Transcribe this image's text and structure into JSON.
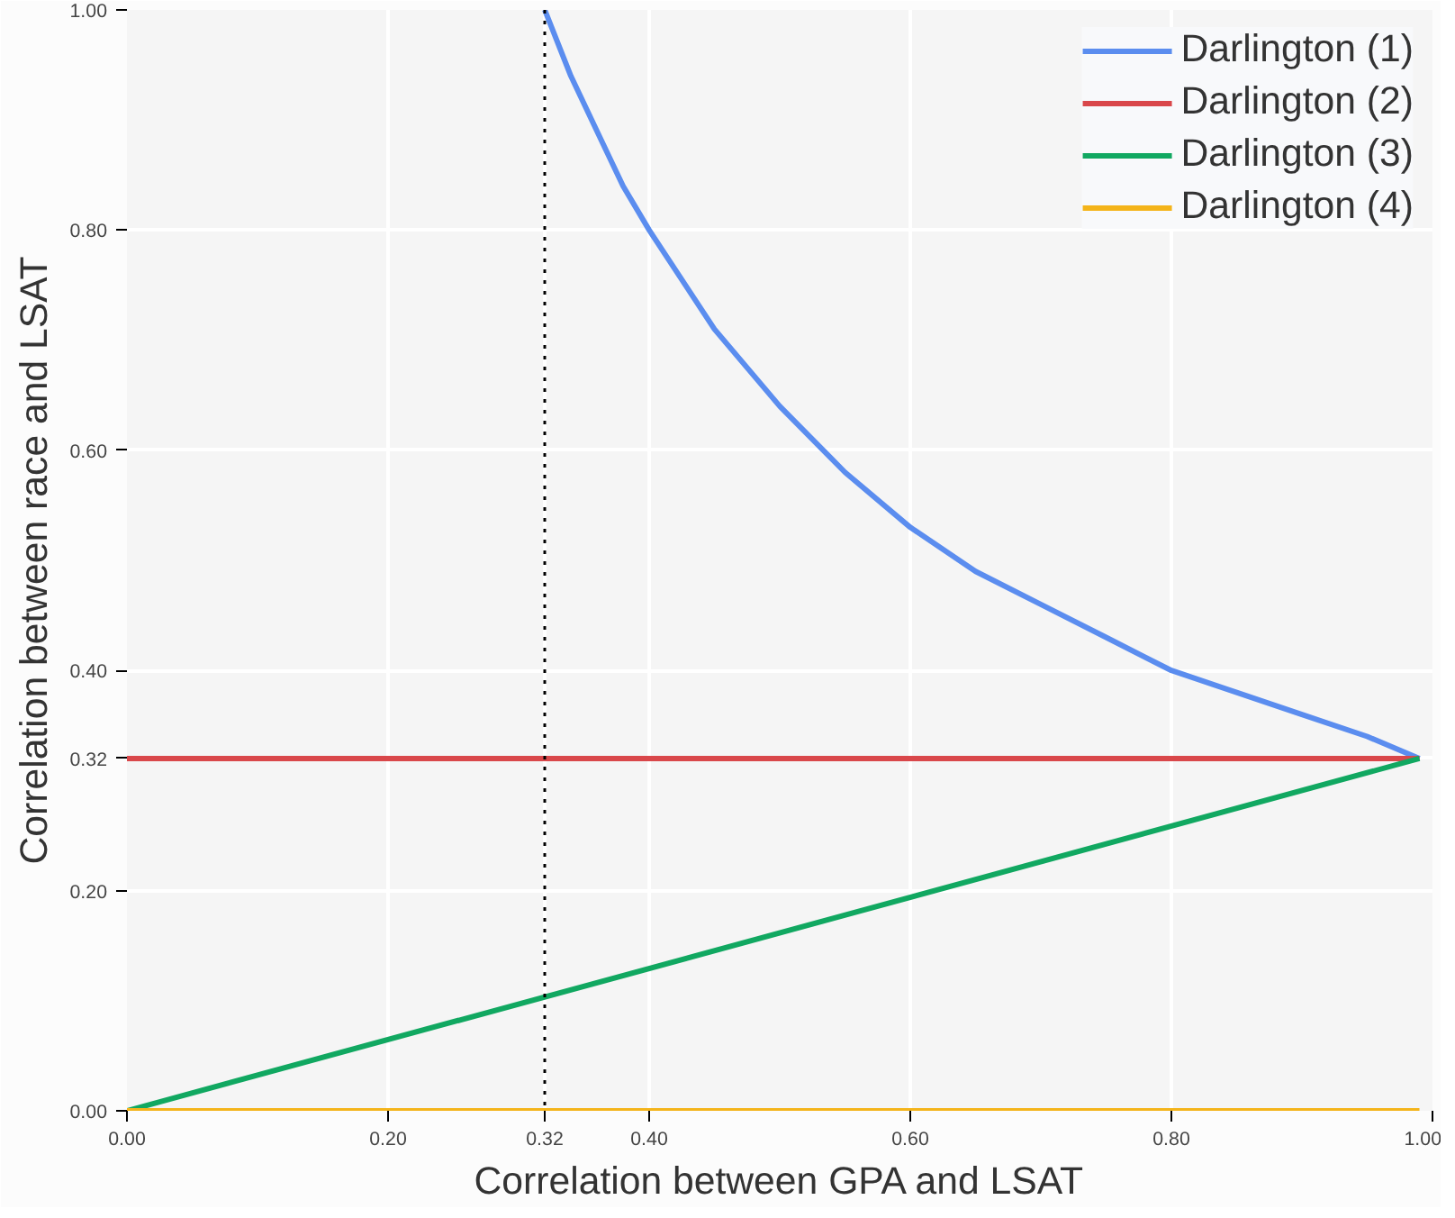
{
  "chart_data": {
    "type": "line",
    "xlabel": "Correlation between GPA and LSAT",
    "ylabel": "Correlation between race and LSAT",
    "series": [
      {
        "name": "Darlington (1)",
        "color": "#5b8def",
        "x": [
          0.32,
          0.34,
          0.36,
          0.38,
          0.4,
          0.45,
          0.5,
          0.55,
          0.6,
          0.65,
          0.7,
          0.75,
          0.8,
          0.85,
          0.9,
          0.95,
          0.99
        ],
        "values": [
          1.0,
          0.94,
          0.89,
          0.84,
          0.8,
          0.71,
          0.64,
          0.58,
          0.53,
          0.49,
          0.46,
          0.43,
          0.4,
          0.38,
          0.36,
          0.34,
          0.32
        ]
      },
      {
        "name": "Darlington (2)",
        "color": "#d9474a",
        "x": [
          0,
          0.99
        ],
        "values": [
          0.32,
          0.32
        ]
      },
      {
        "name": "Darlington (3)",
        "color": "#11a861",
        "x": [
          0,
          0.99
        ],
        "values": [
          0,
          0.32
        ]
      },
      {
        "name": "Darlington (4)",
        "color": "#f4b41a",
        "x": [
          0,
          0.99
        ],
        "values": [
          0,
          0
        ]
      }
    ],
    "xlim": [
      0,
      1
    ],
    "ylim": [
      0,
      1
    ],
    "xticks": [
      {
        "value": 0,
        "label": "0.00"
      },
      {
        "value": 0.2,
        "label": "0.20"
      },
      0.32,
      {
        "value": 0.4,
        "label": "0.40"
      },
      {
        "value": 0.6,
        "label": "0.60"
      },
      {
        "value": 0.8,
        "label": "0.80"
      },
      {
        "value": 1,
        "label": "1.00"
      }
    ],
    "yticks": [
      {
        "value": 0,
        "label": "0.00"
      },
      {
        "value": 0.2,
        "label": "0.20"
      },
      0.32,
      {
        "value": 0.4,
        "label": "0.40"
      },
      {
        "value": 0.6,
        "label": "0.60"
      },
      {
        "value": 0.8,
        "label": "0.80"
      },
      {
        "value": 1,
        "label": "1.00"
      }
    ],
    "ref_lines": [
      {
        "axis": "x",
        "value": 0.32,
        "color": "#000000",
        "line_style": "dotted"
      }
    ],
    "grid": true,
    "legend": "top right"
  }
}
